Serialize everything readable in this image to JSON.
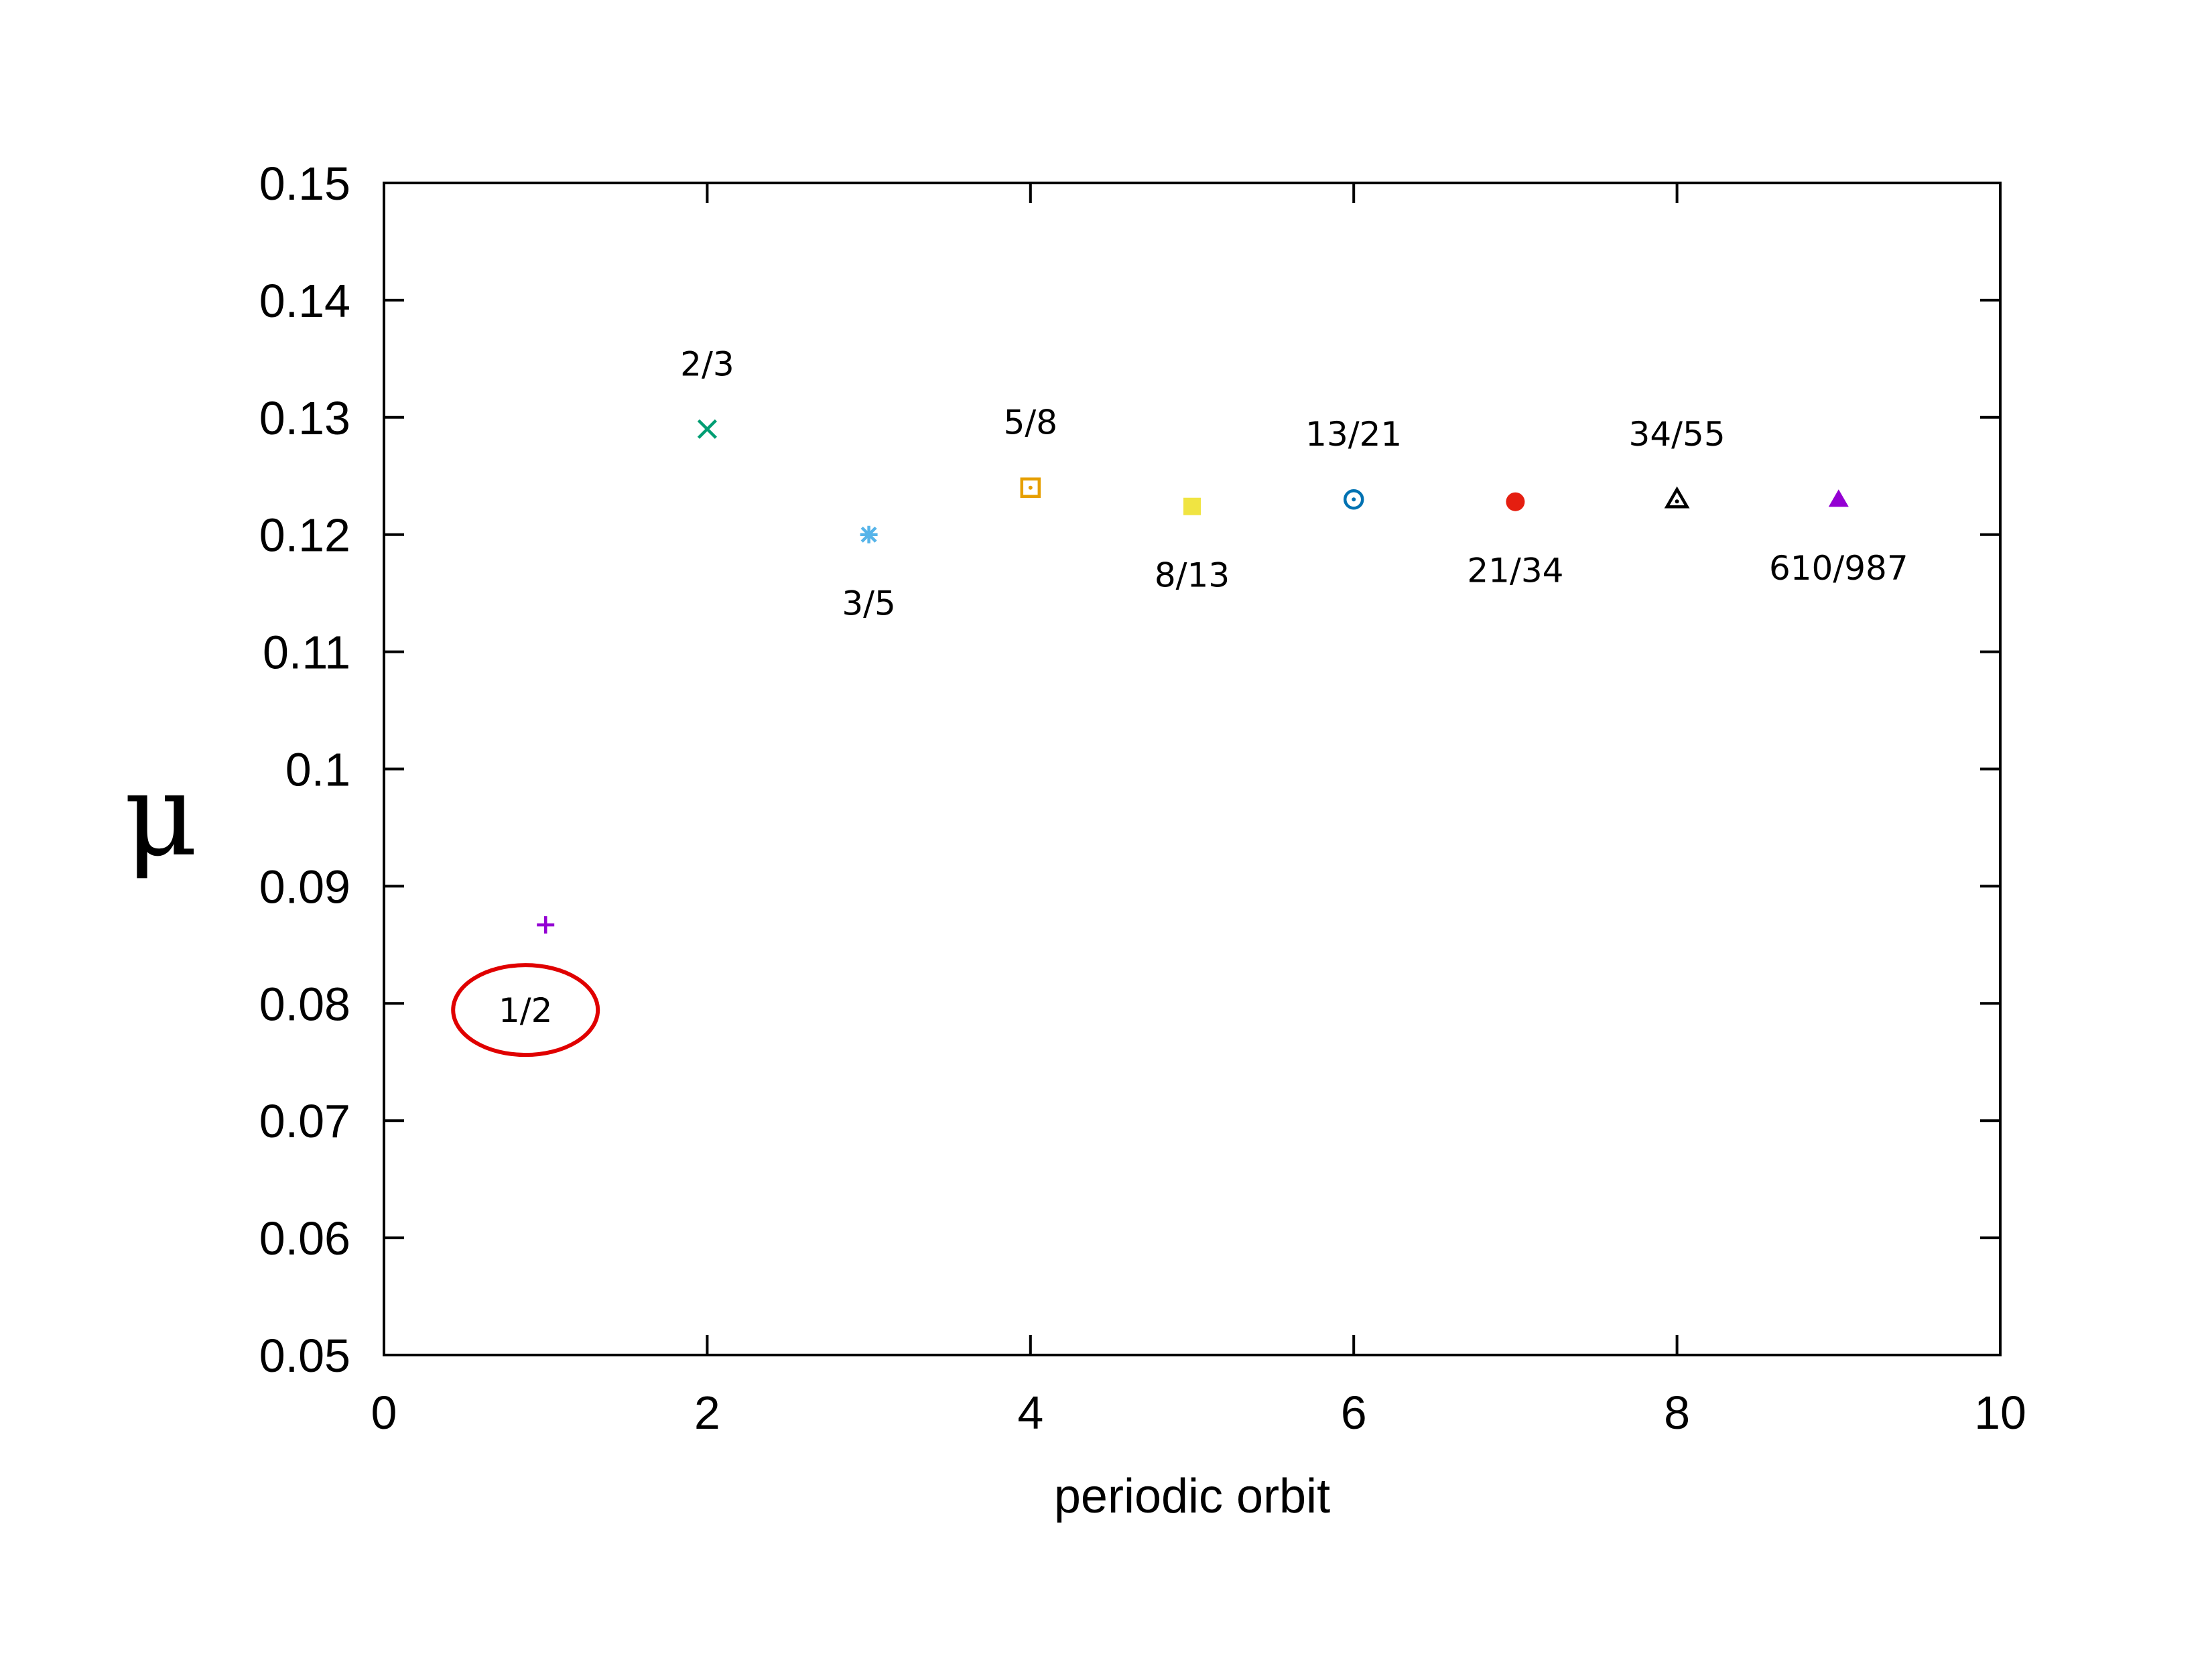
{
  "chart_data": {
    "type": "scatter",
    "title": "",
    "xlabel": "periodic orbit",
    "ylabel": "μ",
    "xlim": [
      0,
      10
    ],
    "ylim": [
      0.05,
      0.15
    ],
    "x_ticks": [
      0,
      2,
      4,
      6,
      8,
      10
    ],
    "x_tick_labels": [
      "0",
      "2",
      "4",
      "6",
      "8",
      "10"
    ],
    "y_ticks": [
      0.05,
      0.06,
      0.07,
      0.08,
      0.09,
      0.1,
      0.11,
      0.12,
      0.13,
      0.14,
      0.15
    ],
    "y_tick_labels": [
      "0.05",
      "0.06",
      "0.07",
      "0.08",
      "0.09",
      "0.1",
      "0.11",
      "0.12",
      "0.13",
      "0.14",
      "0.15"
    ],
    "grid": false,
    "points": [
      {
        "x": 1,
        "y": 0.0867,
        "label": "1/2",
        "marker": "plus",
        "color": "#9400d3",
        "label_pos": "below",
        "highlighted": true
      },
      {
        "x": 2,
        "y": 0.129,
        "label": "2/3",
        "marker": "cross",
        "color": "#009e73",
        "label_pos": "above"
      },
      {
        "x": 3,
        "y": 0.12,
        "label": "3/5",
        "marker": "star",
        "color": "#56b4e9",
        "label_pos": "below"
      },
      {
        "x": 4,
        "y": 0.124,
        "label": "5/8",
        "marker": "square-dot",
        "color": "#e69f00",
        "label_pos": "above"
      },
      {
        "x": 5,
        "y": 0.1224,
        "label": "8/13",
        "marker": "square-filled",
        "color": "#f0e442",
        "label_pos": "below"
      },
      {
        "x": 6,
        "y": 0.123,
        "label": "13/21",
        "marker": "circle-dot",
        "color": "#0072b2",
        "label_pos": "above"
      },
      {
        "x": 7,
        "y": 0.1228,
        "label": "21/34",
        "marker": "circle-filled",
        "color": "#e51e10",
        "label_pos": "below"
      },
      {
        "x": 8,
        "y": 0.123,
        "label": "34/55",
        "marker": "triangle-dot",
        "color": "#000000",
        "label_pos": "above"
      },
      {
        "x": 9,
        "y": 0.123,
        "label": "610/987",
        "marker": "triangle-filled",
        "color": "#9400d3",
        "label_pos": "below"
      }
    ],
    "highlight_color": "#e00000"
  }
}
